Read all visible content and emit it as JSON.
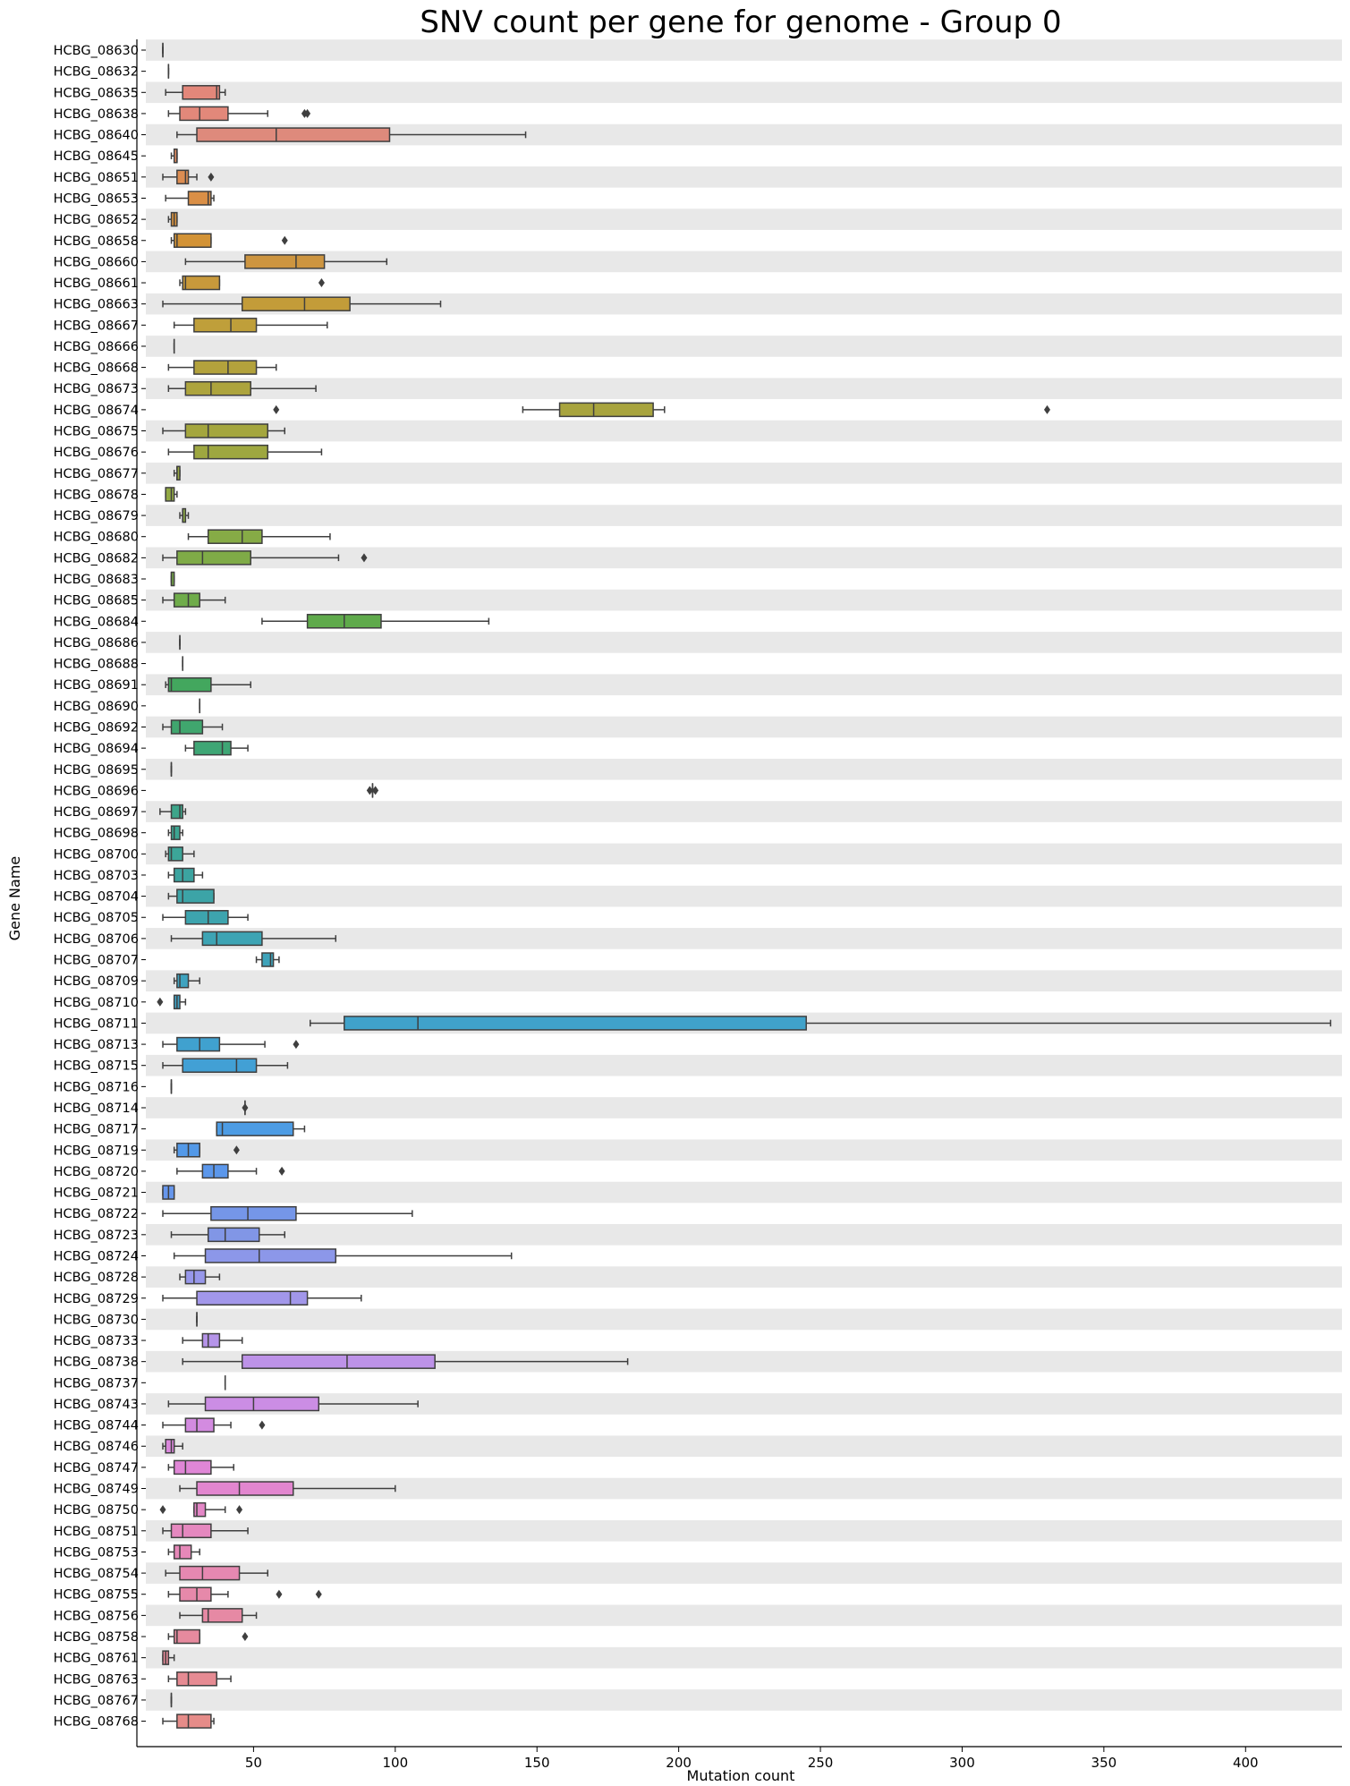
{
  "chart_data": {
    "type": "box",
    "title": "SNV count per gene for genome - Group 0",
    "xlabel": "Mutation count",
    "ylabel": "Gene Name",
    "xlim": [
      12,
      434
    ],
    "xticks": [
      50,
      100,
      150,
      200,
      250,
      300,
      350,
      400
    ],
    "orientation": "horizontal",
    "grid": "alternating row bands",
    "genes": [
      {
        "name": "HCBG_08630",
        "min": 18,
        "q1": 18,
        "median": 18,
        "q3": 18,
        "max": 18,
        "outliers": [],
        "color": "#e8796d"
      },
      {
        "name": "HCBG_08632",
        "min": 20,
        "q1": 20,
        "median": 20,
        "q3": 20,
        "max": 20,
        "outliers": [],
        "color": "#e8796d"
      },
      {
        "name": "HCBG_08635",
        "min": 19,
        "q1": 25,
        "median": 37,
        "q3": 38,
        "max": 40,
        "outliers": [],
        "color": "#e3877a"
      },
      {
        "name": "HCBG_08638",
        "min": 20,
        "q1": 24,
        "median": 31,
        "q3": 41,
        "max": 55,
        "outliers": [
          68,
          69
        ],
        "color": "#e2887a"
      },
      {
        "name": "HCBG_08640",
        "min": 23,
        "q1": 30,
        "median": 58,
        "q3": 98,
        "max": 146,
        "outliers": [],
        "color": "#de8a7c"
      },
      {
        "name": "HCBG_08645",
        "min": 21,
        "q1": 22,
        "median": 23,
        "q3": 23,
        "max": 23,
        "outliers": [],
        "color": "#dd8a60"
      },
      {
        "name": "HCBG_08651",
        "min": 18,
        "q1": 23,
        "median": 26,
        "q3": 27,
        "max": 30,
        "outliers": [
          35
        ],
        "color": "#dc8d52"
      },
      {
        "name": "HCBG_08653",
        "min": 19,
        "q1": 27,
        "median": 34,
        "q3": 35,
        "max": 36,
        "outliers": [],
        "color": "#da8f46"
      },
      {
        "name": "HCBG_08652",
        "min": 20,
        "q1": 21,
        "median": 22,
        "q3": 23,
        "max": 23,
        "outliers": [],
        "color": "#d8923e"
      },
      {
        "name": "HCBG_08658",
        "min": 21,
        "q1": 22,
        "median": 23,
        "q3": 35,
        "max": 35,
        "outliers": [
          61
        ],
        "color": "#d39336"
      },
      {
        "name": "HCBG_08660",
        "min": 26,
        "q1": 47,
        "median": 65,
        "q3": 75,
        "max": 97,
        "outliers": [],
        "color": "#cd9540"
      },
      {
        "name": "HCBG_08661",
        "min": 24,
        "q1": 25,
        "median": 26,
        "q3": 38,
        "max": 38,
        "outliers": [
          74
        ],
        "color": "#c8993b"
      },
      {
        "name": "HCBG_08663",
        "min": 18,
        "q1": 46,
        "median": 68,
        "q3": 84,
        "max": 116,
        "outliers": [],
        "color": "#c39c39"
      },
      {
        "name": "HCBG_08667",
        "min": 22,
        "q1": 29,
        "median": 42,
        "q3": 51,
        "max": 76,
        "outliers": [],
        "color": "#bf9f3a"
      },
      {
        "name": "HCBG_08666",
        "min": 22,
        "q1": 22,
        "median": 22,
        "q3": 22,
        "max": 22,
        "outliers": [],
        "color": "#b9a03b"
      },
      {
        "name": "HCBG_08668",
        "min": 20,
        "q1": 29,
        "median": 41,
        "q3": 51,
        "max": 58,
        "outliers": [],
        "color": "#b3a23c"
      },
      {
        "name": "HCBG_08673",
        "min": 20,
        "q1": 26,
        "median": 35,
        "q3": 49,
        "max": 72,
        "outliers": [],
        "color": "#ada43d"
      },
      {
        "name": "HCBG_08674",
        "min": 145,
        "q1": 158,
        "median": 170,
        "q3": 191,
        "max": 195,
        "outliers": [
          58,
          330
        ],
        "color": "#a8a43e"
      },
      {
        "name": "HCBG_08675",
        "min": 18,
        "q1": 26,
        "median": 34,
        "q3": 55,
        "max": 61,
        "outliers": [],
        "color": "#a4a63e"
      },
      {
        "name": "HCBG_08676",
        "min": 20,
        "q1": 29,
        "median": 34,
        "q3": 55,
        "max": 74,
        "outliers": [],
        "color": "#9ea740"
      },
      {
        "name": "HCBG_08677",
        "min": 22,
        "q1": 23,
        "median": 23,
        "q3": 24,
        "max": 24,
        "outliers": [],
        "color": "#98a842"
      },
      {
        "name": "HCBG_08678",
        "min": 19,
        "q1": 19,
        "median": 21,
        "q3": 22,
        "max": 23,
        "outliers": [],
        "color": "#92a944"
      },
      {
        "name": "HCBG_08679",
        "min": 24,
        "q1": 25,
        "median": 25,
        "q3": 26,
        "max": 27,
        "outliers": [],
        "color": "#8caa45"
      },
      {
        "name": "HCBG_08680",
        "min": 27,
        "q1": 34,
        "median": 46,
        "q3": 53,
        "max": 77,
        "outliers": [],
        "color": "#86ab46"
      },
      {
        "name": "HCBG_08682",
        "min": 18,
        "q1": 23,
        "median": 32,
        "q3": 49,
        "max": 80,
        "outliers": [
          89
        ],
        "color": "#7fab47"
      },
      {
        "name": "HCBG_08683",
        "min": 21,
        "q1": 21,
        "median": 21,
        "q3": 22,
        "max": 22,
        "outliers": [],
        "color": "#77ab48"
      },
      {
        "name": "HCBG_08685",
        "min": 18,
        "q1": 22,
        "median": 27,
        "q3": 31,
        "max": 40,
        "outliers": [],
        "color": "#6fac4a"
      },
      {
        "name": "HCBG_08684",
        "min": 53,
        "q1": 69,
        "median": 82,
        "q3": 95,
        "max": 133,
        "outliers": [],
        "color": "#5faa4b"
      },
      {
        "name": "HCBG_08686",
        "min": 24,
        "q1": 24,
        "median": 24,
        "q3": 24,
        "max": 24,
        "outliers": [],
        "color": "#52a950"
      },
      {
        "name": "HCBG_08688",
        "min": 25,
        "q1": 25,
        "median": 25,
        "q3": 25,
        "max": 25,
        "outliers": [],
        "color": "#48a857"
      },
      {
        "name": "HCBG_08691",
        "min": 19,
        "q1": 20,
        "median": 21,
        "q3": 35,
        "max": 49,
        "outliers": [],
        "color": "#43a75e"
      },
      {
        "name": "HCBG_08690",
        "min": 31,
        "q1": 31,
        "median": 31,
        "q3": 31,
        "max": 31,
        "outliers": [],
        "color": "#41a766"
      },
      {
        "name": "HCBG_08692",
        "min": 18,
        "q1": 21,
        "median": 24,
        "q3": 32,
        "max": 39,
        "outliers": [],
        "color": "#40a66e"
      },
      {
        "name": "HCBG_08694",
        "min": 26,
        "q1": 29,
        "median": 39,
        "q3": 42,
        "max": 48,
        "outliers": [],
        "color": "#3ea675"
      },
      {
        "name": "HCBG_08695",
        "min": 21,
        "q1": 21,
        "median": 21,
        "q3": 21,
        "max": 21,
        "outliers": [],
        "color": "#3ea67c"
      },
      {
        "name": "HCBG_08696",
        "min": 92,
        "q1": 92,
        "median": 92,
        "q3": 92,
        "max": 92,
        "outliers": [
          91,
          93
        ],
        "color": "#3ea583"
      },
      {
        "name": "HCBG_08697",
        "min": 17,
        "q1": 21,
        "median": 24,
        "q3": 25,
        "max": 26,
        "outliers": [],
        "color": "#3da58a"
      },
      {
        "name": "HCBG_08698",
        "min": 20,
        "q1": 21,
        "median": 22,
        "q3": 24,
        "max": 25,
        "outliers": [],
        "color": "#3ca591"
      },
      {
        "name": "HCBG_08700",
        "min": 19,
        "q1": 20,
        "median": 21,
        "q3": 25,
        "max": 29,
        "outliers": [],
        "color": "#3ca598"
      },
      {
        "name": "HCBG_08703",
        "min": 20,
        "q1": 22,
        "median": 25,
        "q3": 29,
        "max": 32,
        "outliers": [],
        "color": "#3ca4a0"
      },
      {
        "name": "HCBG_08704",
        "min": 20,
        "q1": 23,
        "median": 25,
        "q3": 36,
        "max": 36,
        "outliers": [],
        "color": "#3ca4a7"
      },
      {
        "name": "HCBG_08705",
        "min": 18,
        "q1": 26,
        "median": 34,
        "q3": 41,
        "max": 48,
        "outliers": [],
        "color": "#3da4ae"
      },
      {
        "name": "HCBG_08706",
        "min": 21,
        "q1": 32,
        "median": 37,
        "q3": 53,
        "max": 79,
        "outliers": [],
        "color": "#3da4b4"
      },
      {
        "name": "HCBG_08707",
        "min": 51,
        "q1": 53,
        "median": 56,
        "q3": 57,
        "max": 59,
        "outliers": [],
        "color": "#3ea3ba"
      },
      {
        "name": "HCBG_08709",
        "min": 22,
        "q1": 23,
        "median": 24,
        "q3": 27,
        "max": 31,
        "outliers": [],
        "color": "#3fa3bf"
      },
      {
        "name": "HCBG_08710",
        "min": 22,
        "q1": 22,
        "median": 23,
        "q3": 24,
        "max": 26,
        "outliers": [
          17
        ],
        "color": "#40a2c5"
      },
      {
        "name": "HCBG_08711",
        "min": 70,
        "q1": 82,
        "median": 108,
        "q3": 245,
        "max": 430,
        "outliers": [],
        "color": "#40a2ca"
      },
      {
        "name": "HCBG_08713",
        "min": 18,
        "q1": 23,
        "median": 31,
        "q3": 38,
        "max": 54,
        "outliers": [
          65
        ],
        "color": "#40a1cf"
      },
      {
        "name": "HCBG_08715",
        "min": 18,
        "q1": 25,
        "median": 44,
        "q3": 51,
        "max": 62,
        "outliers": [],
        "color": "#42a0d5"
      },
      {
        "name": "HCBG_08716",
        "min": 21,
        "q1": 21,
        "median": 21,
        "q3": 21,
        "max": 21,
        "outliers": [],
        "color": "#449fda"
      },
      {
        "name": "HCBG_08714",
        "min": 47,
        "q1": 47,
        "median": 47,
        "q3": 47,
        "max": 47,
        "outliers": [
          47
        ],
        "color": "#489edf"
      },
      {
        "name": "HCBG_08717",
        "min": 37,
        "q1": 37,
        "median": 39,
        "q3": 64,
        "max": 68,
        "outliers": [],
        "color": "#4d9ce4"
      },
      {
        "name": "HCBG_08719",
        "min": 22,
        "q1": 23,
        "median": 27,
        "q3": 31,
        "max": 31,
        "outliers": [
          44
        ],
        "color": "#5399e8"
      },
      {
        "name": "HCBG_08720",
        "min": 23,
        "q1": 32,
        "median": 36,
        "q3": 41,
        "max": 51,
        "outliers": [
          60
        ],
        "color": "#5b97eb"
      },
      {
        "name": "HCBG_08721",
        "min": 18,
        "q1": 18,
        "median": 20,
        "q3": 22,
        "max": 22,
        "outliers": [],
        "color": "#6696ec"
      },
      {
        "name": "HCBG_08722",
        "min": 18,
        "q1": 35,
        "median": 48,
        "q3": 65,
        "max": 106,
        "outliers": [],
        "color": "#7596e8"
      },
      {
        "name": "HCBG_08723",
        "min": 21,
        "q1": 34,
        "median": 40,
        "q3": 52,
        "max": 61,
        "outliers": [],
        "color": "#8196e6"
      },
      {
        "name": "HCBG_08724",
        "min": 22,
        "q1": 33,
        "median": 52,
        "q3": 79,
        "max": 141,
        "outliers": [],
        "color": "#8c97e9"
      },
      {
        "name": "HCBG_08728",
        "min": 24,
        "q1": 26,
        "median": 29,
        "q3": 33,
        "max": 38,
        "outliers": [],
        "color": "#9797ea"
      },
      {
        "name": "HCBG_08729",
        "min": 18,
        "q1": 30,
        "median": 63,
        "q3": 69,
        "max": 88,
        "outliers": [],
        "color": "#a297ea"
      },
      {
        "name": "HCBG_08730",
        "min": 30,
        "q1": 30,
        "median": 30,
        "q3": 30,
        "max": 30,
        "outliers": [],
        "color": "#ac96ea"
      },
      {
        "name": "HCBG_08733",
        "min": 25,
        "q1": 32,
        "median": 34,
        "q3": 38,
        "max": 46,
        "outliers": [],
        "color": "#b594e9"
      },
      {
        "name": "HCBG_08738",
        "min": 25,
        "q1": 46,
        "median": 83,
        "q3": 114,
        "max": 182,
        "outliers": [],
        "color": "#bd92e8"
      },
      {
        "name": "HCBG_08737",
        "min": 40,
        "q1": 40,
        "median": 40,
        "q3": 40,
        "max": 40,
        "outliers": [],
        "color": "#c490e6"
      },
      {
        "name": "HCBG_08743",
        "min": 20,
        "q1": 33,
        "median": 50,
        "q3": 73,
        "max": 108,
        "outliers": [],
        "color": "#cb8de4"
      },
      {
        "name": "HCBG_08744",
        "min": 18,
        "q1": 26,
        "median": 30,
        "q3": 36,
        "max": 42,
        "outliers": [
          53
        ],
        "color": "#d38be0"
      },
      {
        "name": "HCBG_08746",
        "min": 18,
        "q1": 19,
        "median": 21,
        "q3": 22,
        "max": 25,
        "outliers": [],
        "color": "#da88dc"
      },
      {
        "name": "HCBG_08747",
        "min": 20,
        "q1": 22,
        "median": 26,
        "q3": 35,
        "max": 43,
        "outliers": [],
        "color": "#df86d6"
      },
      {
        "name": "HCBG_08749",
        "min": 24,
        "q1": 30,
        "median": 45,
        "q3": 64,
        "max": 100,
        "outliers": [],
        "color": "#e286cf"
      },
      {
        "name": "HCBG_08750",
        "min": 29,
        "q1": 29,
        "median": 30,
        "q3": 33,
        "max": 40,
        "outliers": [
          18,
          45
        ],
        "color": "#e487c7"
      },
      {
        "name": "HCBG_08751",
        "min": 18,
        "q1": 21,
        "median": 25,
        "q3": 35,
        "max": 48,
        "outliers": [],
        "color": "#e588bf"
      },
      {
        "name": "HCBG_08753",
        "min": 20,
        "q1": 22,
        "median": 24,
        "q3": 28,
        "max": 31,
        "outliers": [],
        "color": "#e688b8"
      },
      {
        "name": "HCBG_08754",
        "min": 19,
        "q1": 24,
        "median": 32,
        "q3": 45,
        "max": 55,
        "outliers": [],
        "color": "#e688b1"
      },
      {
        "name": "HCBG_08755",
        "min": 20,
        "q1": 24,
        "median": 30,
        "q3": 35,
        "max": 41,
        "outliers": [
          59,
          73
        ],
        "color": "#e689aa"
      },
      {
        "name": "HCBG_08756",
        "min": 24,
        "q1": 32,
        "median": 34,
        "q3": 46,
        "max": 51,
        "outliers": [],
        "color": "#e689a4"
      },
      {
        "name": "HCBG_08758",
        "min": 20,
        "q1": 22,
        "median": 23,
        "q3": 31,
        "max": 31,
        "outliers": [
          47
        ],
        "color": "#e68a9e"
      },
      {
        "name": "HCBG_08761",
        "min": 18,
        "q1": 18,
        "median": 19,
        "q3": 20,
        "max": 22,
        "outliers": [],
        "color": "#e68a98"
      },
      {
        "name": "HCBG_08763",
        "min": 20,
        "q1": 23,
        "median": 27,
        "q3": 37,
        "max": 42,
        "outliers": [],
        "color": "#e68b93"
      },
      {
        "name": "HCBG_08767",
        "min": 21,
        "q1": 21,
        "median": 21,
        "q3": 21,
        "max": 21,
        "outliers": [],
        "color": "#e68c8e"
      },
      {
        "name": "HCBG_08768",
        "min": 18,
        "q1": 23,
        "median": 27,
        "q3": 35,
        "max": 36,
        "outliers": [],
        "color": "#e68c89"
      }
    ]
  }
}
